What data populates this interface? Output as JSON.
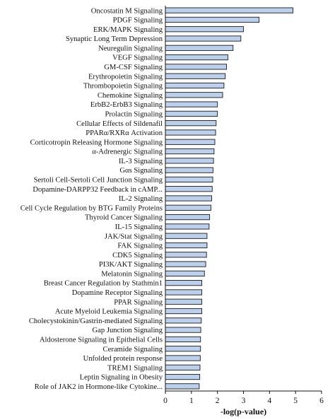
{
  "chart_data": {
    "type": "bar",
    "orientation": "horizontal",
    "title": "",
    "xlabel": "-log(p-value)",
    "ylabel": "",
    "xlim": [
      0,
      6
    ],
    "xticks": [
      0,
      1,
      2,
      3,
      4,
      5,
      6
    ],
    "bar_color": "#bcd0ec",
    "bar_edge_color": "#1a1a1a",
    "grid": false,
    "categories": [
      "Oncostatin M Signaling",
      "PDGF Signaling",
      "ERK/MAPK Signaling",
      "Synaptic Long Term Depression",
      "Neuregulin Signaling",
      "VEGF Signaling",
      "GM-CSF Signaling",
      "Erythropoietin Signaling",
      "Thrombopoietin Signaling",
      "Chemokine Signaling",
      "ErbB2-ErbB3 Signaling",
      "Prolactin Signaling",
      "Cellular Effects of Sildenafil",
      "PPARα/RXRα Activation",
      "Corticotropin Releasing Hormone Signaling",
      "α-Adrenergic Signaling",
      "IL-3 Signaling",
      "Gαs Signaling",
      "Sertoli Cell-Sertoli Cell Junction Signaling",
      "Dopamine-DARPP32 Feedback in cAMP...",
      "IL-2 Signaling",
      "Cell Cycle Regulation by BTG Family Proteins",
      "Thyroid Cancer Signaling",
      "IL-15 Signaling",
      "JAK/Stat Signaling",
      "FAK Signaling",
      "CDK5 Signaling",
      "PI3K/AKT Signaling",
      "Melatonin Signaling",
      "Breast Cancer Regulation by Stathmin1",
      "Dopamine Receptor Signaling",
      "PPAR Signaling",
      "Acute Myeloid Leukemia Signaling",
      "Cholecystokinin/Gastrin-mediated Signaling",
      "Gap Junction Signaling",
      "Aldosterone Signaling in Epithelial Cells",
      "Ceramide Signaling",
      "Unfolded protein response",
      "TREM1 Signaling",
      "Leptin Signaling in Obesity",
      "Role of JAK2 in Hormone-like Cytokine..."
    ],
    "values": [
      4.9,
      3.6,
      3.0,
      2.9,
      2.6,
      2.4,
      2.35,
      2.3,
      2.25,
      2.2,
      2.0,
      2.0,
      1.95,
      1.93,
      1.9,
      1.87,
      1.85,
      1.83,
      1.82,
      1.8,
      1.78,
      1.75,
      1.7,
      1.68,
      1.6,
      1.6,
      1.58,
      1.55,
      1.5,
      1.4,
      1.4,
      1.4,
      1.4,
      1.38,
      1.36,
      1.35,
      1.35,
      1.34,
      1.33,
      1.32,
      1.3
    ]
  }
}
